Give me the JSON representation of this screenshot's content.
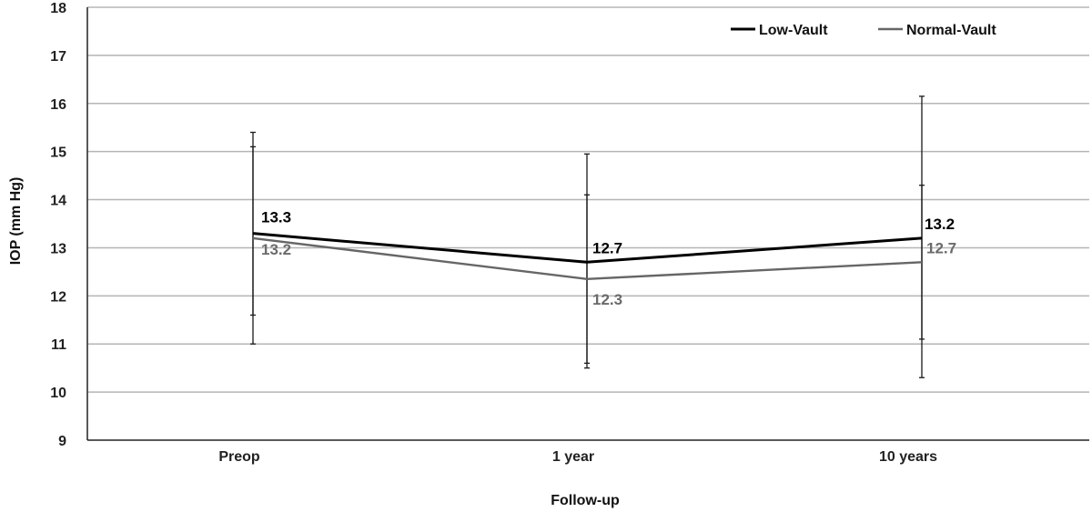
{
  "chart_data": {
    "type": "line",
    "title": "",
    "xlabel": "Follow-up",
    "ylabel": "IOP (mm Hg)",
    "categories": [
      "Preop",
      "1 year",
      "10 years"
    ],
    "ylim": [
      9,
      18
    ],
    "yticks": [
      "9",
      "10",
      "11",
      "12",
      "13",
      "14",
      "15",
      "16",
      "17",
      "18"
    ],
    "grid": true,
    "legend_position": "top-right",
    "series": [
      {
        "name": "Low-Vault",
        "color": "#000000",
        "values": [
          13.3,
          12.7,
          13.2
        ],
        "labels": [
          "13.3",
          "12.7",
          "13.2"
        ],
        "error_low": [
          11.0,
          10.5,
          10.3
        ],
        "error_high": [
          15.4,
          14.95,
          16.15
        ]
      },
      {
        "name": "Normal-Vault",
        "color": "#666666",
        "values": [
          13.2,
          12.35,
          12.7
        ],
        "labels": [
          "13.2",
          "12.3",
          "12.7"
        ],
        "error_low": [
          11.6,
          10.6,
          11.1
        ],
        "error_high": [
          15.1,
          14.1,
          14.3
        ]
      }
    ]
  }
}
